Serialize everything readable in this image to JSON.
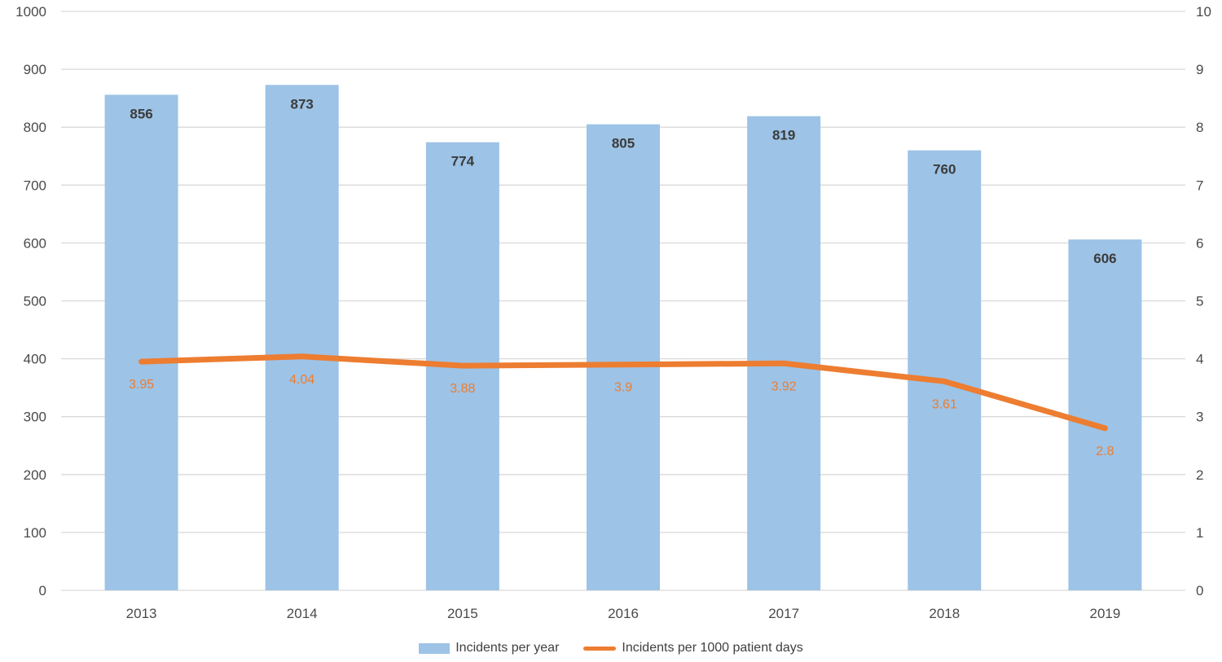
{
  "chart_data": {
    "type": "combo",
    "categories": [
      "2013",
      "2014",
      "2015",
      "2016",
      "2017",
      "2018",
      "2019"
    ],
    "series": [
      {
        "name": "Incidents per year",
        "type": "bar",
        "axis": "left",
        "color": "#9DC3E6",
        "values": [
          856,
          873,
          774,
          805,
          819,
          760,
          606
        ],
        "value_labels": [
          "856",
          "873",
          "774",
          "805",
          "819",
          "760",
          "606"
        ]
      },
      {
        "name": "Incidents per 1000 patient days",
        "type": "line",
        "axis": "right",
        "color": "#ED7D31",
        "values": [
          3.95,
          4.04,
          3.88,
          3.9,
          3.92,
          3.61,
          2.8
        ],
        "value_labels": [
          "3.95",
          "4.04",
          "3.88",
          "3.9",
          "3.92",
          "3.61",
          "2.8"
        ]
      }
    ],
    "left_axis": {
      "min": 0,
      "max": 1000,
      "step": 100
    },
    "right_axis": {
      "min": 0,
      "max": 10,
      "step": 1
    },
    "grid": true,
    "legend_position": "bottom"
  },
  "colors": {
    "background": "#FFFFFF",
    "gridline": "#D9D9D9",
    "axis_text": "#4A4A4A",
    "bar_value_label": "#3B3B3B",
    "line_value_label": "#ED7D31",
    "legend_text": "#404040"
  }
}
